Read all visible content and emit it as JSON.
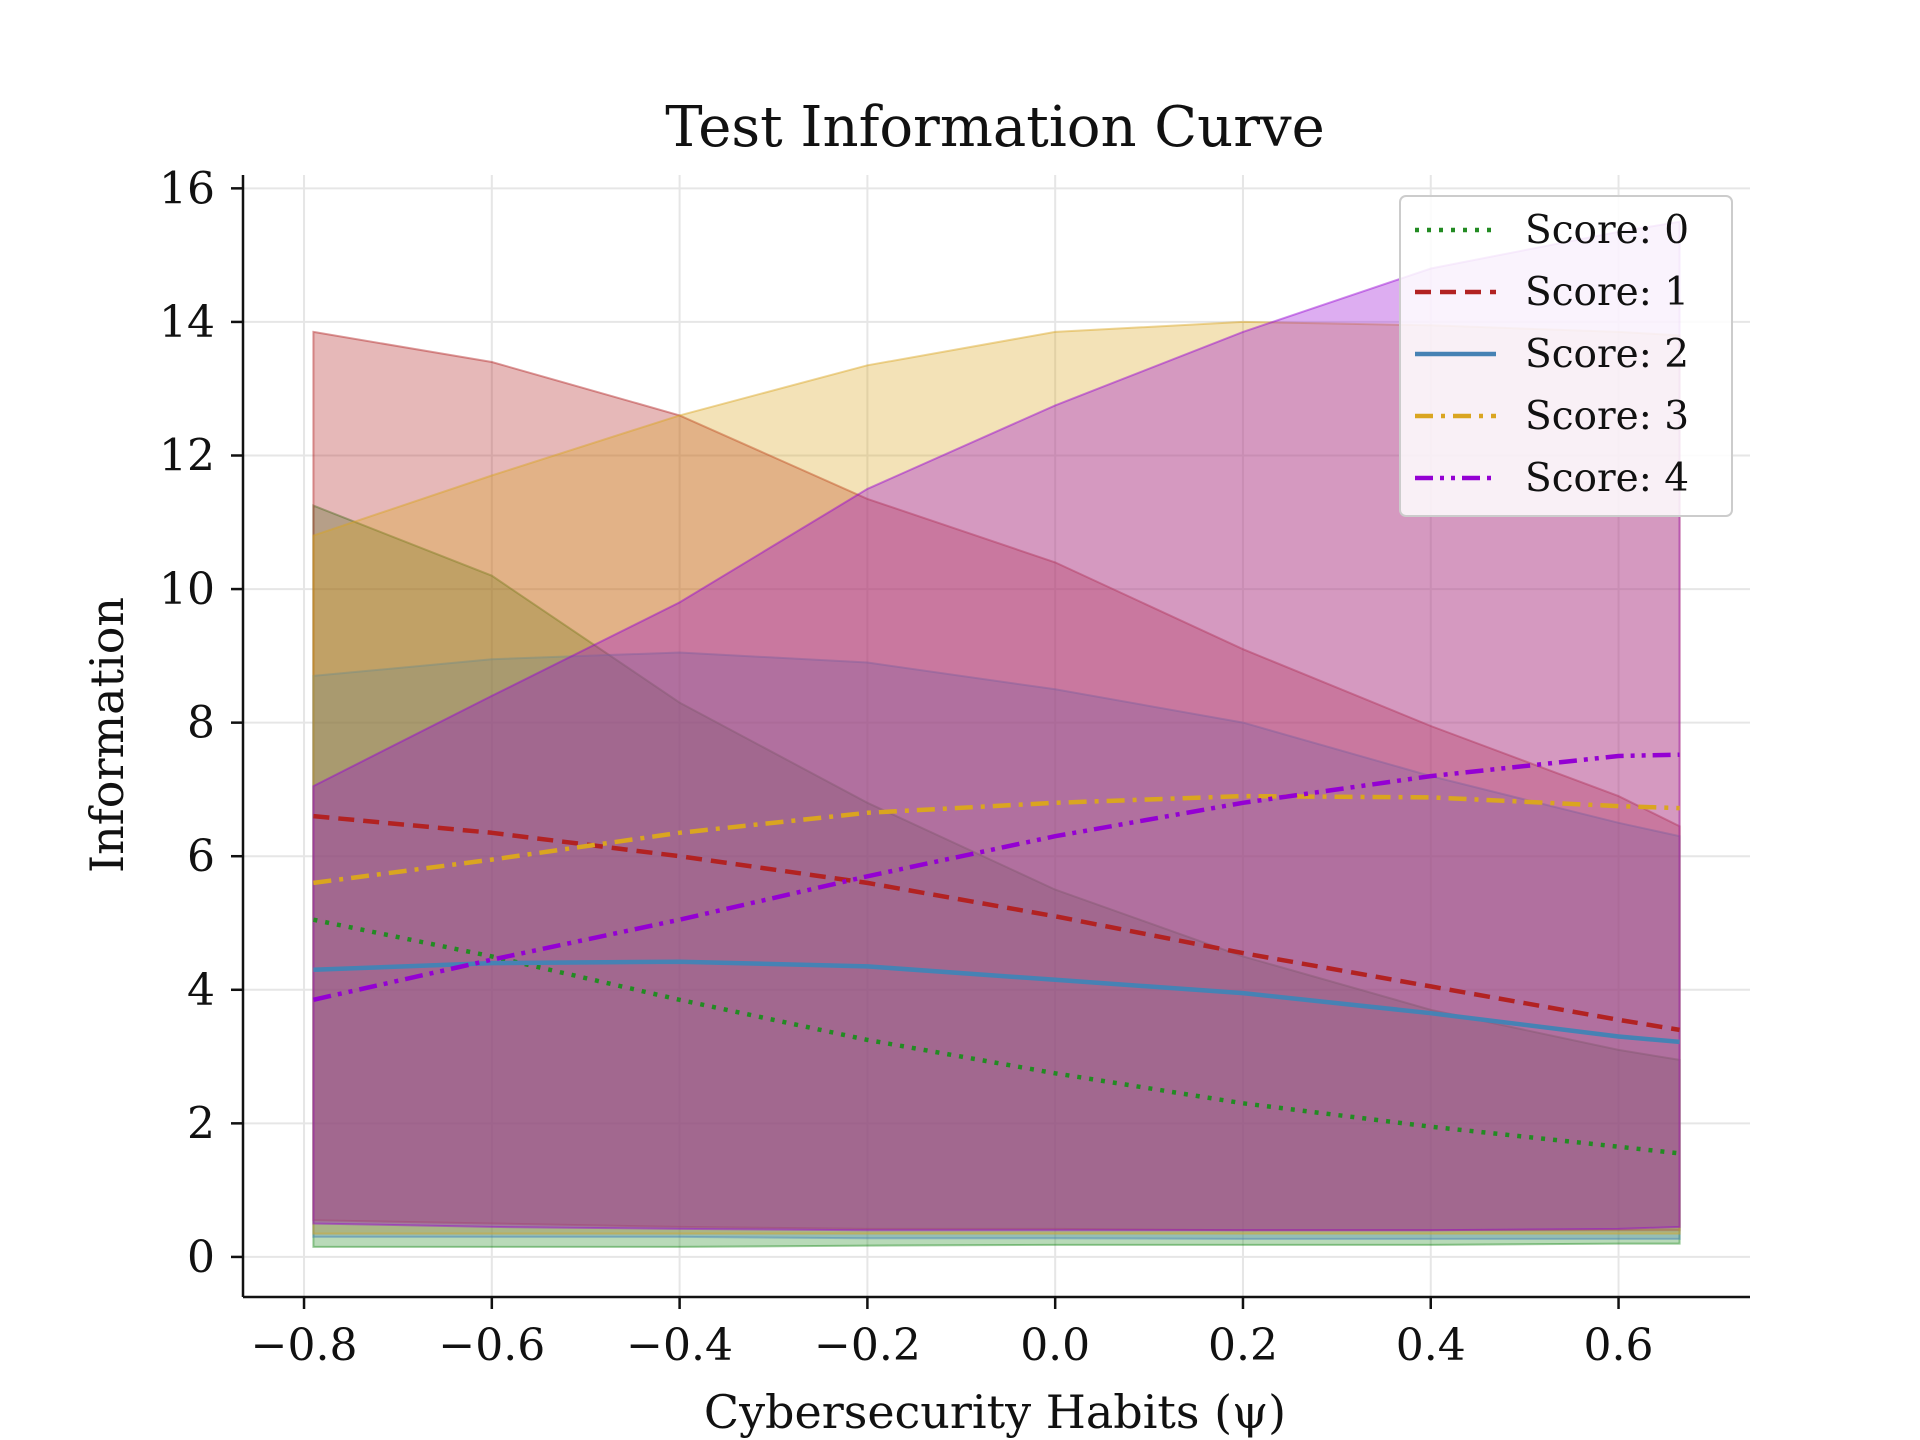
{
  "chart_data": {
    "type": "line",
    "title": "Test Information Curve",
    "xlabel": "Cybersecurity Habits (ψ)",
    "ylabel": "Information",
    "xlim": [
      -0.865,
      0.74
    ],
    "ylim": [
      -0.6,
      16.2
    ],
    "xticks": [
      -0.8,
      -0.6,
      -0.4,
      -0.2,
      0.0,
      0.2,
      0.4,
      0.6
    ],
    "xtick_labels": [
      "−0.8",
      "−0.6",
      "−0.4",
      "−0.2",
      "0.0",
      "0.2",
      "0.4",
      "0.6"
    ],
    "yticks": [
      0,
      2,
      4,
      6,
      8,
      10,
      12,
      14,
      16
    ],
    "ytick_labels": [
      "0",
      "2",
      "4",
      "6",
      "8",
      "10",
      "12",
      "14",
      "16"
    ],
    "grid": true,
    "legend_position": "top-right",
    "x": [
      -0.79,
      -0.6,
      -0.4,
      -0.2,
      0.0,
      0.2,
      0.4,
      0.6,
      0.665
    ],
    "series": [
      {
        "name": "Score: 0",
        "color": "#228B22",
        "dash": "dotted",
        "values": [
          5.05,
          4.5,
          3.85,
          3.25,
          2.75,
          2.3,
          1.95,
          1.65,
          1.55
        ],
        "band_upper": [
          11.25,
          10.2,
          8.3,
          6.8,
          5.5,
          4.5,
          3.7,
          3.1,
          2.95
        ],
        "band_lower": [
          0.15,
          0.15,
          0.15,
          0.17,
          0.18,
          0.18,
          0.18,
          0.2,
          0.2
        ]
      },
      {
        "name": "Score: 1",
        "color": "#B22222",
        "dash": "dashed",
        "values": [
          6.6,
          6.35,
          6.0,
          5.6,
          5.1,
          4.55,
          4.05,
          3.55,
          3.4
        ],
        "band_upper": [
          13.85,
          13.4,
          12.6,
          11.35,
          10.4,
          9.1,
          7.95,
          6.9,
          6.45
        ],
        "band_lower": [
          0.55,
          0.5,
          0.45,
          0.42,
          0.42,
          0.4,
          0.4,
          0.4,
          0.4
        ]
      },
      {
        "name": "Score: 2",
        "color": "#4682B4",
        "dash": "solid",
        "values": [
          4.3,
          4.4,
          4.42,
          4.35,
          4.15,
          3.95,
          3.65,
          3.3,
          3.22
        ],
        "band_upper": [
          8.7,
          8.95,
          9.05,
          8.9,
          8.5,
          8.0,
          7.2,
          6.5,
          6.3
        ],
        "band_lower": [
          0.3,
          0.3,
          0.3,
          0.28,
          0.28,
          0.27,
          0.27,
          0.27,
          0.27
        ]
      },
      {
        "name": "Score: 3",
        "color": "#DAA520",
        "dash": "dashdot",
        "values": [
          5.6,
          5.95,
          6.35,
          6.65,
          6.8,
          6.9,
          6.88,
          6.75,
          6.72
        ],
        "band_upper": [
          10.8,
          11.7,
          12.6,
          13.35,
          13.85,
          14.0,
          13.95,
          13.85,
          13.8
        ],
        "band_lower": [
          0.35,
          0.35,
          0.35,
          0.35,
          0.35,
          0.35,
          0.35,
          0.35,
          0.35
        ]
      },
      {
        "name": "Score: 4",
        "color": "#9400D3",
        "dash": "dashdotdot",
        "values": [
          3.85,
          4.45,
          5.05,
          5.7,
          6.3,
          6.8,
          7.2,
          7.5,
          7.52
        ],
        "band_upper": [
          7.05,
          8.4,
          9.8,
          11.5,
          12.75,
          13.85,
          14.8,
          15.35,
          15.5
        ],
        "band_lower": [
          0.5,
          0.45,
          0.42,
          0.4,
          0.4,
          0.4,
          0.4,
          0.42,
          0.45
        ]
      }
    ]
  }
}
